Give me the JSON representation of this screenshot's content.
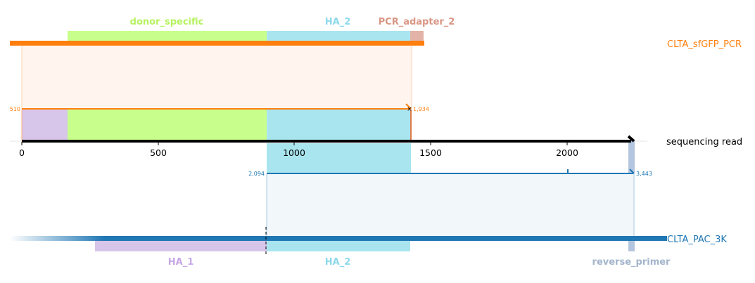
{
  "colors": {
    "donor_specific": "#c8ff8c",
    "donor_specific_label": "#b5f25f",
    "HA_1": "#d8c5ea",
    "HA_1_label": "#c7a8e6",
    "HA_2": "#a9e5ef",
    "HA_2_label": "#8ed9eb",
    "PCR_adapter_2": "#e3b3a7",
    "PCR_adapter_2_label": "#d99684",
    "reverse_primer": "#b4c6df",
    "reverse_primer_label": "#a3b5cc",
    "sfgfp": "#ff7f0e",
    "sfgfp_fill": "#fff5ee",
    "pac": "#1f77b4",
    "pac_fill": "#f2f7fa",
    "read": "#000000"
  },
  "top_feature_labels": {
    "donor_specific": "donor_specific",
    "HA_2": "HA_2",
    "PCR_adapter_2": "PCR_adapter_2"
  },
  "bottom_feature_labels": {
    "HA_1": "HA_1",
    "HA_2": "HA_2",
    "reverse_primer": "reverse_primer"
  },
  "references": {
    "top": "CLTA_sfGFP_PCR",
    "middle": "sequencing read",
    "bottom": "CLTA_PAC_3K"
  },
  "axis_ticks": [
    "0",
    "500",
    "1000",
    "1500",
    "2000"
  ],
  "alignments": {
    "top_start": "510",
    "top_end": "1,934",
    "bottom_start": "2,094",
    "bottom_end": "3,443"
  }
}
